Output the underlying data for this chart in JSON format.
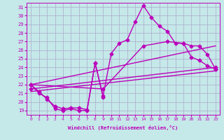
{
  "xlabel": "Windchill (Refroidissement éolien,°C)",
  "xlim": [
    -0.5,
    23.5
  ],
  "ylim": [
    18.5,
    31.5
  ],
  "yticks": [
    19,
    20,
    21,
    22,
    23,
    24,
    25,
    26,
    27,
    28,
    29,
    30,
    31
  ],
  "xticks": [
    0,
    1,
    2,
    3,
    4,
    5,
    6,
    7,
    8,
    9,
    10,
    11,
    12,
    13,
    14,
    15,
    16,
    17,
    18,
    19,
    20,
    21,
    22,
    23
  ],
  "bg_color": "#c5e8e8",
  "grid_color": "#aaaacc",
  "line_color": "#bb00bb",
  "line_width": 1.0,
  "marker": "D",
  "marker_size": 2.5,
  "lines": [
    {
      "x": [
        0,
        1,
        2,
        3,
        4,
        5,
        6,
        7,
        8,
        9
      ],
      "y": [
        22,
        21,
        20.5,
        19.2,
        19.0,
        19.2,
        19.0,
        19.0,
        24.5,
        20.5
      ]
    },
    {
      "x": [
        0,
        1,
        2,
        3,
        4,
        5,
        6,
        7,
        8,
        9,
        10,
        11,
        12,
        13,
        14,
        15,
        16,
        17,
        18,
        19,
        20,
        21,
        22,
        23
      ],
      "y": [
        22,
        21.2,
        20.3,
        19.5,
        19.2,
        19.3,
        19.3,
        19.1,
        24.5,
        20.7,
        25.6,
        26.8,
        27.2,
        29.3,
        31.2,
        29.8,
        28.8,
        28.2,
        26.8,
        26.8,
        25.2,
        24.8,
        24.2,
        23.8
      ]
    },
    {
      "x": [
        0,
        9,
        14,
        17,
        19,
        20,
        21,
        22,
        23
      ],
      "y": [
        22,
        21.5,
        26.5,
        27.0,
        26.8,
        26.5,
        26.5,
        25.5,
        23.8
      ]
    },
    {
      "x": [
        0,
        23
      ],
      "y": [
        21.5,
        24.0
      ]
    }
  ]
}
